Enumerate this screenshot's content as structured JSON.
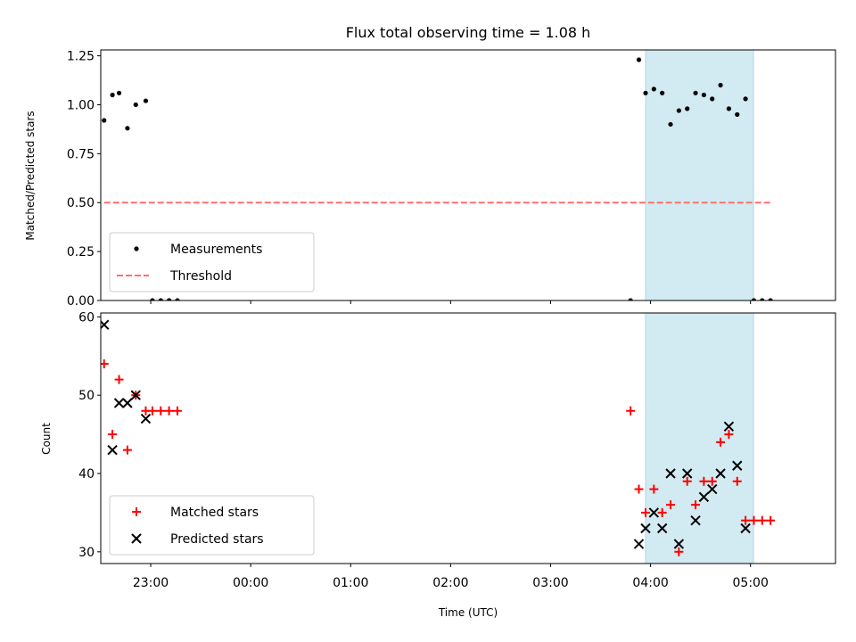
{
  "chart_data": {
    "title": "Flux total observing time = 1.08 h",
    "observing_window_color": "#add8e6",
    "x_unit": "hours since 23:00 UTC",
    "panels": [
      {
        "id": "ratio",
        "type": "scatter",
        "ylabel": "Matched/Predicted stars",
        "ylim": [
          0,
          1.28
        ],
        "yticks": [
          "0.00",
          "0.25",
          "0.50",
          "0.75",
          "1.00",
          "1.25"
        ],
        "ytick_values": [
          0,
          0.25,
          0.5,
          0.75,
          1.0,
          1.25
        ],
        "legend": {
          "position": "lower-left",
          "entries": [
            "Measurements",
            "Threshold"
          ]
        },
        "series": [
          {
            "name": "Measurements",
            "marker": "dot",
            "color": "#000000",
            "x": [
              "22:32",
              "22:37",
              "22:41",
              "22:46",
              "22:51",
              "22:57",
              "23:01",
              "23:06",
              "23:11",
              "23:16",
              "03:48",
              "03:53",
              "03:57",
              "04:02",
              "04:07",
              "04:12",
              "04:17",
              "04:22",
              "04:27",
              "04:32",
              "04:37",
              "04:42",
              "04:47",
              "04:52",
              "04:57",
              "05:02",
              "05:07",
              "05:12"
            ],
            "y": [
              0.92,
              1.05,
              1.06,
              0.88,
              1.0,
              1.02,
              0,
              0,
              0,
              0,
              0,
              1.23,
              1.06,
              1.08,
              1.06,
              0.9,
              0.97,
              0.98,
              1.06,
              1.05,
              1.03,
              1.1,
              0.98,
              0.95,
              1.03,
              0,
              0,
              0
            ]
          },
          {
            "name": "Threshold",
            "style": "dashed",
            "color": "#ff6f6f",
            "x": [
              "22:32",
              "05:12"
            ],
            "y": [
              0.5,
              0.5
            ]
          }
        ]
      },
      {
        "id": "counts",
        "type": "scatter",
        "ylabel": "Count",
        "ylim": [
          28.5,
          60.5
        ],
        "yticks": [
          "30",
          "40",
          "50",
          "60"
        ],
        "ytick_values": [
          30,
          40,
          50,
          60
        ],
        "xlabel": "Time (UTC)",
        "xticks": [
          "23:00",
          "00:00",
          "01:00",
          "02:00",
          "03:00",
          "04:00",
          "05:00"
        ],
        "legend": {
          "position": "lower-left",
          "entries": [
            "Matched stars",
            "Predicted stars"
          ]
        },
        "series": [
          {
            "name": "Matched stars",
            "marker": "plus",
            "color": "#ff0000",
            "x": [
              "22:32",
              "22:37",
              "22:41",
              "22:46",
              "22:51",
              "22:57",
              "23:01",
              "23:06",
              "23:11",
              "23:16",
              "03:48",
              "03:53",
              "03:57",
              "04:02",
              "04:07",
              "04:12",
              "04:17",
              "04:22",
              "04:27",
              "04:32",
              "04:37",
              "04:42",
              "04:47",
              "04:52",
              "04:57",
              "05:02",
              "05:07",
              "05:12"
            ],
            "y": [
              54,
              45,
              52,
              43,
              50,
              48,
              48,
              48,
              48,
              48,
              48,
              38,
              35,
              38,
              35,
              36,
              30,
              39,
              36,
              39,
              39,
              44,
              45,
              39,
              34,
              34,
              34,
              34
            ]
          },
          {
            "name": "Predicted stars",
            "marker": "x",
            "color": "#000000",
            "x": [
              "22:32",
              "22:37",
              "22:41",
              "22:46",
              "22:51",
              "22:57",
              "03:53",
              "03:57",
              "04:02",
              "04:07",
              "04:12",
              "04:17",
              "04:22",
              "04:27",
              "04:32",
              "04:37",
              "04:42",
              "04:47",
              "04:52",
              "04:57"
            ],
            "y": [
              59,
              43,
              49,
              49,
              50,
              47,
              31,
              33,
              35,
              33,
              40,
              31,
              40,
              34,
              37,
              38,
              40,
              46,
              41,
              33
            ]
          }
        ]
      }
    ]
  }
}
